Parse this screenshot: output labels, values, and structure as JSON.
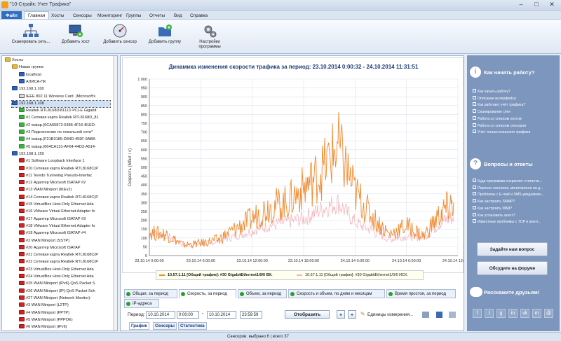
{
  "window": {
    "title": "\"10-Страйк: Учет Трафика\""
  },
  "menu": {
    "file": "Файл",
    "items": [
      "Главная",
      "Хосты",
      "Сенсоры",
      "Мониторинг",
      "Группы",
      "Отчеты",
      "Вид",
      "Справка"
    ]
  },
  "ribbon": {
    "buttons": [
      "Сканировать сеть...",
      "Добавить хост",
      "Добавить сенсор",
      "Добавить группу",
      "Настройки программы"
    ]
  },
  "tree": [
    {
      "t": "Хосты",
      "lvl": 0,
      "ic": "hf"
    },
    {
      "t": "Новая группа",
      "lvl": 1,
      "ic": "hf"
    },
    {
      "t": "localhost",
      "lvl": 2,
      "ic": "pc"
    },
    {
      "t": "АЛИСА-ПК",
      "lvl": 2,
      "ic": "pc"
    },
    {
      "t": "192.168.1.100",
      "lvl": 1,
      "ic": "pc"
    },
    {
      "t": "IEEE 802.11 Wireless Card. (Microsoft's",
      "lvl": 2,
      "ic": "wh"
    },
    {
      "t": "192.168.1.108",
      "lvl": 1,
      "ic": "pc",
      "sel": true
    },
    {
      "t": "Realtek RTL8168D/8111D PCI-E Gigabit",
      "lvl": 2,
      "ic": "g"
    },
    {
      "t": "#1 Сетевая карта Realtek RTL8168D_81",
      "lvl": 2,
      "ic": "g"
    },
    {
      "t": "#2 isatap.{6CA65872-6386-4F16-B1ED-",
      "lvl": 2,
      "ic": "g"
    },
    {
      "t": "#3 Подключение по локальной сети*",
      "lvl": 2,
      "ic": "g"
    },
    {
      "t": "#4 isatap.{F21B3185-D84D-459F-9AB8-",
      "lvl": 2,
      "ic": "g"
    },
    {
      "t": "#5 isatap.{664CA131-AF64-44D3-A514-",
      "lvl": 2,
      "ic": "g"
    },
    {
      "t": "192.168.1.150",
      "lvl": 1,
      "ic": "pc"
    },
    {
      "t": "#1 Software Loopback Interface 1",
      "lvl": 2,
      "ic": "r"
    },
    {
      "t": "#10 Сетевая карта Realtek RTL8168C(P",
      "lvl": 2,
      "ic": "r"
    },
    {
      "t": "#11 Teredo Tunneling Pseudo-Interfac",
      "lvl": 2,
      "ic": "r"
    },
    {
      "t": "#12 Адаптер Microsoft ISATAP #2",
      "lvl": 2,
      "ic": "r"
    },
    {
      "t": "#13 WAN Miniport (IKEv2)",
      "lvl": 2,
      "ic": "r"
    },
    {
      "t": "#14 Сетевая карта Realtek RTL8168C(P",
      "lvl": 2,
      "ic": "r"
    },
    {
      "t": "#15 VirtualBox Host-Only Ethernet Ada",
      "lvl": 2,
      "ic": "r"
    },
    {
      "t": "#16 VMware Virtual Ethernet Adapter fo",
      "lvl": 2,
      "ic": "r"
    },
    {
      "t": "#17 Адаптер Microsoft ISATAP #3",
      "lvl": 2,
      "ic": "r"
    },
    {
      "t": "#18 VMware Virtual Ethernet Adapter fo",
      "lvl": 2,
      "ic": "r"
    },
    {
      "t": "#19 Адаптер Microsoft ISATAP #4",
      "lvl": 2,
      "ic": "r"
    },
    {
      "t": "#2 WAN Miniport (SSTP)",
      "lvl": 2,
      "ic": "r"
    },
    {
      "t": "#20 Адаптер Microsoft ISATAP",
      "lvl": 2,
      "ic": "r"
    },
    {
      "t": "#21 Сетевая карта Realtek RTL8168C(P",
      "lvl": 2,
      "ic": "r"
    },
    {
      "t": "#22 Сетевая карта Realtek RTL8168C(P",
      "lvl": 2,
      "ic": "r"
    },
    {
      "t": "#23 VirtualBox Host-Only Ethernet Ada",
      "lvl": 2,
      "ic": "r"
    },
    {
      "t": "#24 VirtualBox Host-Only Ethernet Ada",
      "lvl": 2,
      "ic": "r"
    },
    {
      "t": "#25 WAN Miniport (IPv6)-QoS Packet S",
      "lvl": 2,
      "ic": "r"
    },
    {
      "t": "#26 WAN Miniport (IP)-QoS Packet Sch",
      "lvl": 2,
      "ic": "r"
    },
    {
      "t": "#27 WAN Miniport (Network Monitor)-",
      "lvl": 2,
      "ic": "r"
    },
    {
      "t": "#3 WAN Miniport (L2TP)",
      "lvl": 2,
      "ic": "r"
    },
    {
      "t": "#4 WAN Miniport (PPTP)",
      "lvl": 2,
      "ic": "r"
    },
    {
      "t": "#5 WAN Miniport (PPPOE)",
      "lvl": 2,
      "ic": "r"
    },
    {
      "t": "#6 WAN Miniport (IPv6)",
      "lvl": 2,
      "ic": "r"
    }
  ],
  "chart_data": {
    "type": "line",
    "title": "Динамика изменения скорости трафика за период: 23.10.2014 0:00:32 - 24.10.2014 11:31:51",
    "ylabel": "Скорость (Мбит / с)",
    "ylim": [
      0,
      1000
    ],
    "yticks": [
      "0",
      "50",
      "100",
      "150",
      "200",
      "250",
      "300",
      "350",
      "400",
      "450",
      "500",
      "550",
      "600",
      "650",
      "700",
      "750",
      "800",
      "850",
      "900",
      "950",
      "1 000"
    ],
    "xticks": [
      "23.10.14 0:00:00",
      "23.10.14 6:00:00",
      "23.10.14 12:00:00",
      "23.10.14 18:00:00",
      "24.10.14 0:00:00",
      "24.10.14 6:00:00",
      "24.10.14 12:00:00"
    ],
    "x_hours": [
      0,
      2,
      4,
      6,
      8,
      10,
      12,
      14,
      16,
      18,
      20,
      22,
      24,
      26,
      28,
      30,
      32,
      34,
      35.5
    ],
    "series": [
      {
        "name": "10.57.1.11 [Общий трафик]: #30 GigabitEthernet1/0/0 ВХ.",
        "color": "#f08a30",
        "values": [
          130,
          120,
          60,
          70,
          90,
          150,
          210,
          280,
          300,
          380,
          470,
          620,
          360,
          220,
          120,
          170,
          110,
          240,
          300
        ]
      },
      {
        "name": "10.57.1.11 [Общий трафик]: #30 GigabitEthernet1/0/0 ИСХ.",
        "color": "#f2b0b8",
        "values": [
          130,
          115,
          60,
          65,
          80,
          110,
          140,
          170,
          190,
          210,
          260,
          300,
          190,
          140,
          90,
          110,
          100,
          190,
          220
        ]
      }
    ],
    "legend_series": [
      "10.57.1.11 [Общий трафик]: #30 GigabitEthernet1/0/0 ВХ.",
      "10.57.1.11 [Общий трафик]: #30 GigabitEthernet1/0/0 ИСХ."
    ]
  },
  "tabs": [
    "Общая, за период",
    "Скорость, за период",
    "Объем, за период",
    "Скорость и объем, по дням и месяцам",
    "Время простоя, за период",
    "IP-адреса"
  ],
  "period": {
    "label": "Период:",
    "from_date": "10.10.2014",
    "from_time": "0:00:00",
    "dash": "-",
    "to_date": "10.10.2014",
    "to_time": "23:59:59",
    "display": "Отобразить",
    "units": "Единицы измерения..."
  },
  "bottom_tabs": [
    "График",
    "Сенсоры",
    "Статистика"
  ],
  "right": {
    "how_title": "Как начать работу?",
    "how_links": [
      "Как начать работу?",
      "Описание интерфейса",
      "Как работает учёт трафика?",
      "Сканирование сети",
      "Работа со списком хостов",
      "Работа со списком сенсоров",
      "Учёт только внешнего трафика"
    ],
    "qa_title": "Вопросы и ответы",
    "qa_links": [
      "Куда программа сохраняет статисти...",
      "Перенос настроек, мониторинга на д...",
      "Проблемы с E-mail и SMS-уведомлен...",
      "Как настроить SNMP?",
      "Как настроить WMI?",
      "Как установить агент?",
      "Известные проблемы с TCP и агент..."
    ],
    "ask": "Задайте нам вопрос",
    "forum": "Обсудите на форуме",
    "tell": "Расскажите друзьям!",
    "social": [
      "f",
      "t",
      "g",
      "in",
      "vk",
      "m",
      "@"
    ]
  },
  "status": "Сенсоров: выбрано 6 | всего 37"
}
